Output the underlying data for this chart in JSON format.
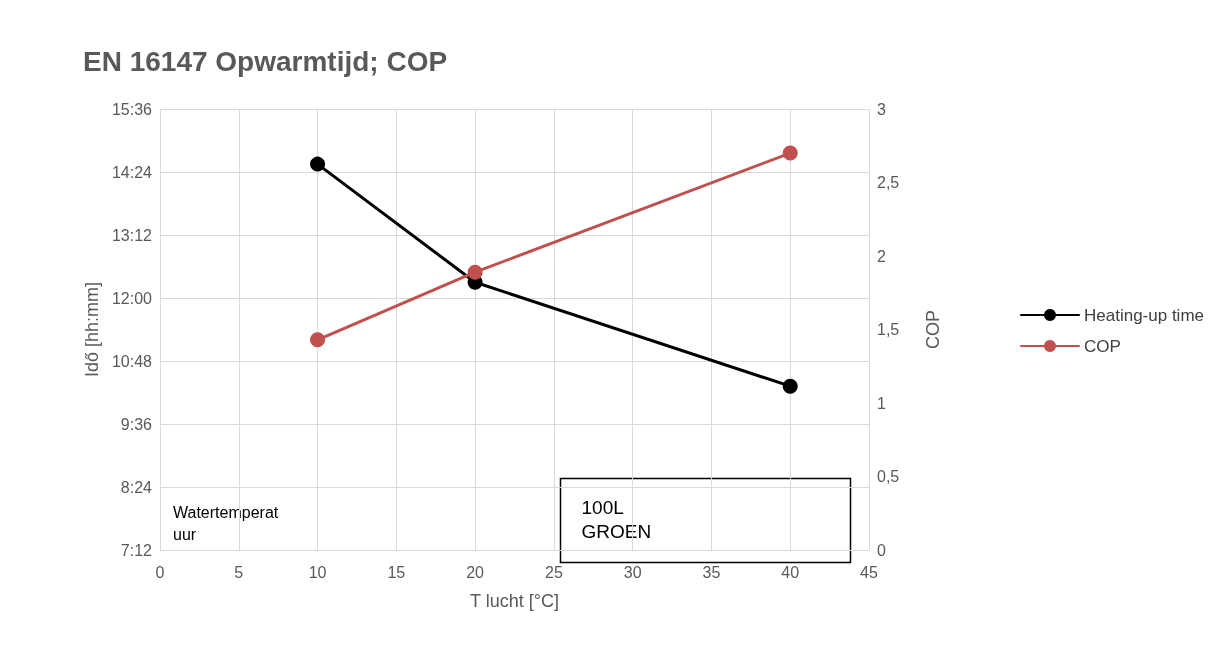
{
  "chart_data": {
    "type": "line",
    "title": "EN 16147 Opwarmtijd; COP",
    "xlabel": "T lucht [°C]",
    "ylabel": "Idő [hh:mm]",
    "y2label": "COP",
    "x": [
      10,
      20,
      40
    ],
    "series": [
      {
        "name": "Heating-up time",
        "color": "#000000",
        "values": [
          14.55,
          12.3,
          10.32
        ]
      },
      {
        "name": "COP",
        "color": "#c0504d",
        "values": [
          1.43,
          1.89,
          2.7
        ],
        "axis": "y2"
      }
    ],
    "xlim": [
      0,
      45
    ],
    "xticks": [
      0,
      5,
      10,
      15,
      20,
      25,
      30,
      35,
      40,
      45
    ],
    "ylim": [
      7.2,
      15.6
    ],
    "yticks": [
      {
        "value": 7.2,
        "label": "7:12"
      },
      {
        "value": 8.4,
        "label": "8:24"
      },
      {
        "value": 9.6,
        "label": "9:36"
      },
      {
        "value": 10.8,
        "label": "10:48"
      },
      {
        "value": 12,
        "label": "12:00"
      },
      {
        "value": 13.2,
        "label": "13:12"
      },
      {
        "value": 14.4,
        "label": "14:24"
      },
      {
        "value": 15.6,
        "label": "15:36"
      }
    ],
    "y2lim": [
      0,
      3
    ],
    "y2ticks": [
      {
        "value": 0,
        "label": "0"
      },
      {
        "value": 0.5,
        "label": "0,5"
      },
      {
        "value": 1,
        "label": "1"
      },
      {
        "value": 1.5,
        "label": "1,5"
      },
      {
        "value": 2,
        "label": "2"
      },
      {
        "value": 2.5,
        "label": "2,5"
      },
      {
        "value": 3,
        "label": "3"
      }
    ],
    "annotations": [
      "Watertemperatuur",
      "100L GROEN"
    ],
    "grid": true,
    "legend": "right",
    "marker": "circle",
    "line_style": "solid"
  }
}
